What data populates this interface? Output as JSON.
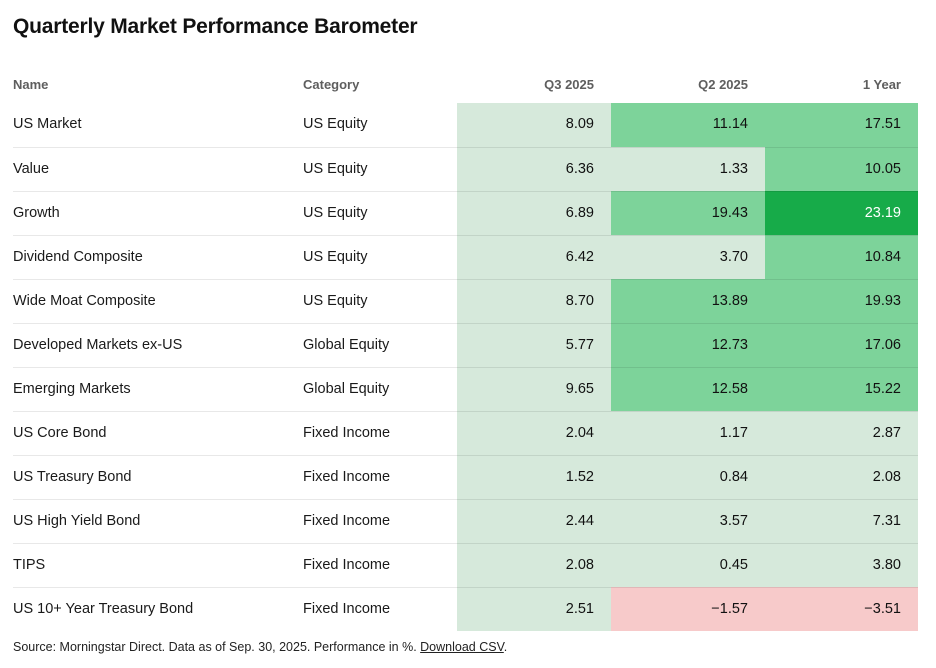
{
  "title": "Quarterly Market Performance Barometer",
  "heat_colors": {
    "light": "#d6e9db",
    "medium": "#7dd39a",
    "dark": "#17ab49",
    "negative": "#f7caca"
  },
  "dark_cell_text_color": "#ffffff",
  "chart_data": {
    "type": "heatmap-table",
    "title": "Quarterly Market Performance Barometer",
    "columns": [
      "Name",
      "Category",
      "Q3 2025",
      "Q2 2025",
      "1 Year"
    ],
    "legend": "cell shading encodes performance: negative = pink, 0-10 = light green, 10-20 = medium green, 20+ = dark green",
    "rows": [
      {
        "name": "US Market",
        "category": "US Equity",
        "values": [
          "8.09",
          "11.14",
          "17.51"
        ],
        "tones": [
          "light",
          "medium",
          "medium"
        ]
      },
      {
        "name": "Value",
        "category": "US Equity",
        "values": [
          "6.36",
          "1.33",
          "10.05"
        ],
        "tones": [
          "light",
          "light",
          "medium"
        ]
      },
      {
        "name": "Growth",
        "category": "US Equity",
        "values": [
          "6.89",
          "19.43",
          "23.19"
        ],
        "tones": [
          "light",
          "medium",
          "dark"
        ]
      },
      {
        "name": "Dividend Composite",
        "category": "US Equity",
        "values": [
          "6.42",
          "3.70",
          "10.84"
        ],
        "tones": [
          "light",
          "light",
          "medium"
        ]
      },
      {
        "name": "Wide Moat Composite",
        "category": "US Equity",
        "values": [
          "8.70",
          "13.89",
          "19.93"
        ],
        "tones": [
          "light",
          "medium",
          "medium"
        ]
      },
      {
        "name": "Developed Markets ex-US",
        "category": "Global Equity",
        "values": [
          "5.77",
          "12.73",
          "17.06"
        ],
        "tones": [
          "light",
          "medium",
          "medium"
        ]
      },
      {
        "name": "Emerging Markets",
        "category": "Global Equity",
        "values": [
          "9.65",
          "12.58",
          "15.22"
        ],
        "tones": [
          "light",
          "medium",
          "medium"
        ]
      },
      {
        "name": "US Core Bond",
        "category": "Fixed Income",
        "values": [
          "2.04",
          "1.17",
          "2.87"
        ],
        "tones": [
          "light",
          "light",
          "light"
        ]
      },
      {
        "name": "US Treasury Bond",
        "category": "Fixed Income",
        "values": [
          "1.52",
          "0.84",
          "2.08"
        ],
        "tones": [
          "light",
          "light",
          "light"
        ]
      },
      {
        "name": "US High Yield Bond",
        "category": "Fixed Income",
        "values": [
          "2.44",
          "3.57",
          "7.31"
        ],
        "tones": [
          "light",
          "light",
          "light"
        ]
      },
      {
        "name": "TIPS",
        "category": "Fixed Income",
        "values": [
          "2.08",
          "0.45",
          "3.80"
        ],
        "tones": [
          "light",
          "light",
          "light"
        ]
      },
      {
        "name": "US 10+ Year Treasury Bond",
        "category": "Fixed Income",
        "values": [
          "2.51",
          "−1.57",
          "−3.51"
        ],
        "tones": [
          "light",
          "negative",
          "negative"
        ]
      }
    ]
  },
  "footer": {
    "text": "Source: Morningstar Direct. Data as of Sep. 30, 2025. Performance in %.",
    "link_label": "Download CSV",
    "suffix": "."
  }
}
